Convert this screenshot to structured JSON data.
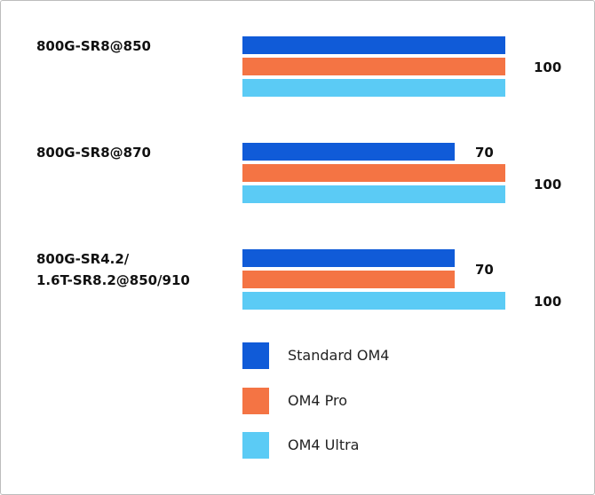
{
  "chart_data": {
    "type": "bar",
    "orientation": "horizontal",
    "categories": [
      "800G-SR8@850",
      "800G-SR8@870",
      "800G-SR4.2/\n1.6T-SR8.2@850/910"
    ],
    "series": [
      {
        "name": "Standard OM4",
        "color": "#105BD8",
        "values": [
          100,
          70,
          70
        ]
      },
      {
        "name": "OM4 Pro",
        "color": "#F47444",
        "values": [
          100,
          100,
          70
        ]
      },
      {
        "name": "OM4 Ultra",
        "color": "#5BCBF5",
        "values": [
          100,
          100,
          100
        ]
      }
    ],
    "data_labels": [
      [
        {
          "text": "100",
          "series": [
            0,
            1,
            2
          ]
        }
      ],
      [
        {
          "text": "70",
          "series": [
            0
          ]
        },
        {
          "text": "100",
          "series": [
            1,
            2
          ]
        }
      ],
      [
        {
          "text": "70",
          "series": [
            0,
            1
          ]
        },
        {
          "text": "100",
          "series": [
            2
          ]
        }
      ]
    ],
    "legend": "bottom",
    "grid": false,
    "title": "",
    "xlabel": "",
    "ylabel": ""
  }
}
